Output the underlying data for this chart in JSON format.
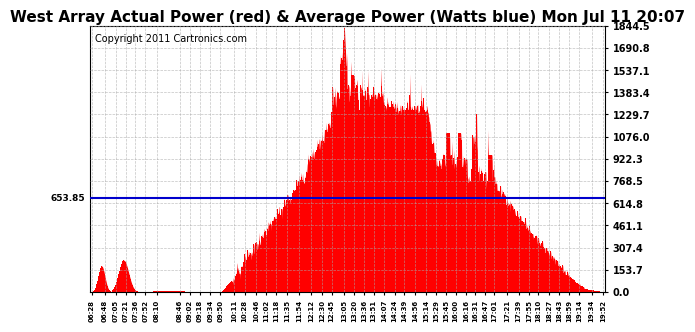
{
  "title": "West Array Actual Power (red) & Average Power (Watts blue) Mon Jul 11 20:07",
  "copyright": "Copyright 2011 Cartronics.com",
  "average_power": 653.85,
  "ymax": 1844.5,
  "yticks": [
    0.0,
    153.7,
    307.4,
    461.1,
    614.8,
    768.5,
    922.3,
    1076.0,
    1229.7,
    1383.4,
    1537.1,
    1690.8,
    1844.5
  ],
  "ytick_labels": [
    "0.0",
    "153.7",
    "307.4",
    "461.1",
    "614.8",
    "768.5",
    "922.3",
    "1076.0",
    "1229.7",
    "1383.4",
    "1537.1",
    "1690.8",
    "1844.5"
  ],
  "bg_color": "#ffffff",
  "fill_color": "#ff0000",
  "line_color": "#0000cc",
  "grid_color": "#aaaaaa",
  "title_fontsize": 11,
  "copyright_fontsize": 7,
  "time_labels": [
    "06:28",
    "06:48",
    "07:05",
    "07:21",
    "07:36",
    "07:52",
    "08:10",
    "08:46",
    "09:02",
    "09:18",
    "09:34",
    "09:50",
    "10:11",
    "10:28",
    "10:46",
    "11:02",
    "11:18",
    "11:35",
    "11:54",
    "12:12",
    "12:30",
    "12:45",
    "13:05",
    "13:20",
    "13:36",
    "13:51",
    "14:07",
    "14:24",
    "14:39",
    "14:56",
    "15:14",
    "15:29",
    "15:45",
    "16:00",
    "16:16",
    "16:31",
    "16:47",
    "17:01",
    "17:21",
    "17:39",
    "17:55",
    "18:10",
    "18:27",
    "18:43",
    "18:59",
    "19:14",
    "19:34",
    "19:52"
  ]
}
